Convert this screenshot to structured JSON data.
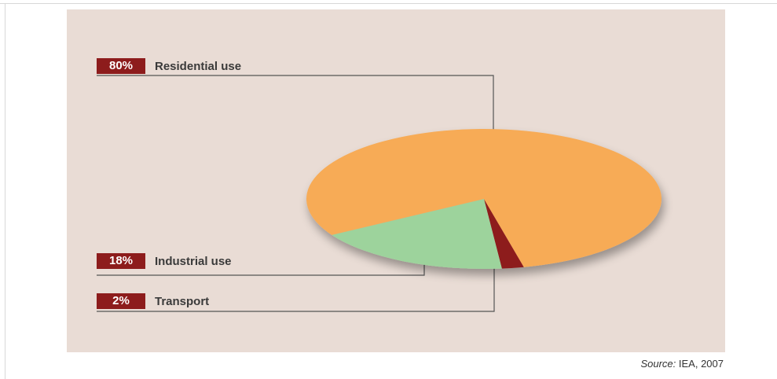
{
  "chart_data": {
    "type": "pie",
    "slices": [
      {
        "label": "Residential use",
        "value": 80,
        "value_text": "80%",
        "color": "#f7ab57"
      },
      {
        "label": "Industrial use",
        "value": 18,
        "value_text": "18%",
        "color": "#9dd39c"
      },
      {
        "label": "Transport",
        "value": 2,
        "value_text": "2%",
        "color": "#8d1c1c"
      }
    ],
    "legend_placement": "left",
    "background_color": "#e9dcd5",
    "badge_color": "#8d1c1c",
    "leader_line_color": "#555555"
  },
  "source": {
    "prefix": "Source:",
    "text": " IEA, 2007"
  }
}
